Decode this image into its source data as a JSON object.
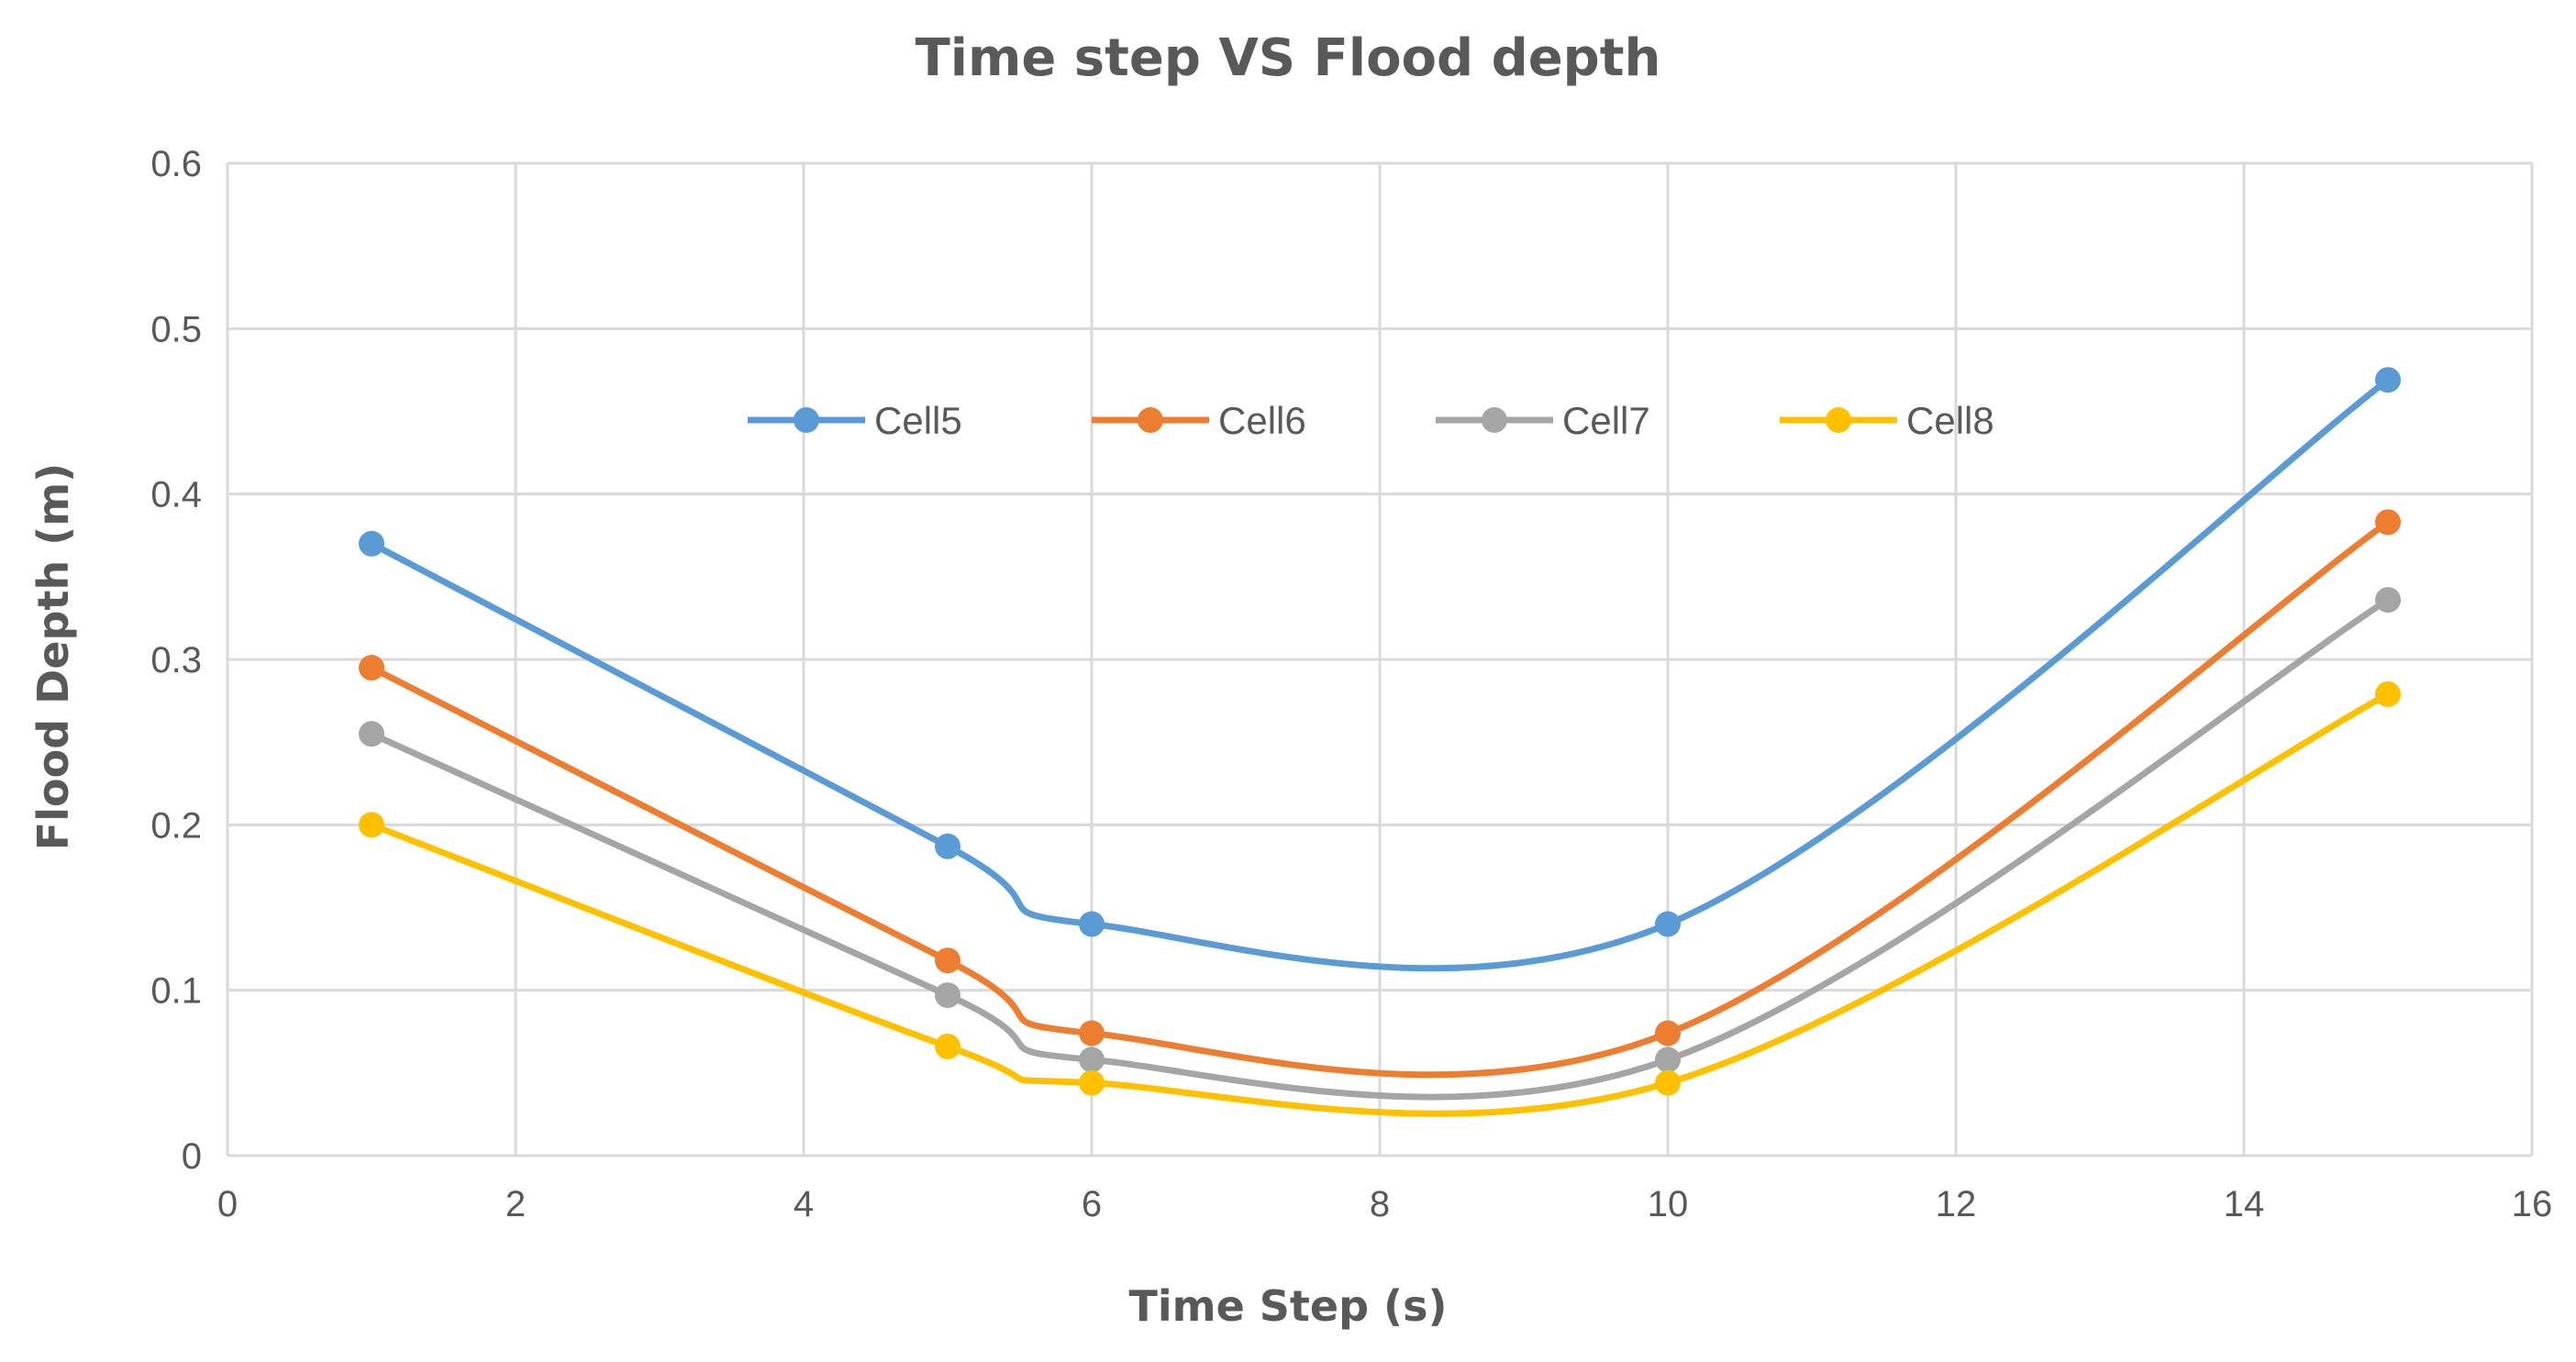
{
  "chart_data": {
    "type": "line",
    "title": "Time step  VS Flood depth",
    "xlabel": "Time Step (s)",
    "ylabel": "Flood Depth (m)",
    "xlim": [
      0,
      16
    ],
    "ylim": [
      0,
      0.6
    ],
    "x_ticks": [
      "0",
      "2",
      "4",
      "6",
      "8",
      "10",
      "12",
      "14",
      "16"
    ],
    "y_ticks": [
      "0",
      "0.1",
      "0.2",
      "0.3",
      "0.4",
      "0.5",
      "0.6"
    ],
    "grid": true,
    "smooth": true,
    "legend_position": "inside-top",
    "x": [
      1,
      5,
      6,
      10,
      15
    ],
    "series": [
      {
        "name": "Cell5",
        "color": "#5b9bd5",
        "values": [
          0.37,
          0.187,
          0.14,
          0.14,
          0.469
        ]
      },
      {
        "name": "Cell6",
        "color": "#ed7d31",
        "values": [
          0.295,
          0.118,
          0.074,
          0.074,
          0.383
        ]
      },
      {
        "name": "Cell7",
        "color": "#a5a5a5",
        "values": [
          0.255,
          0.097,
          0.058,
          0.058,
          0.336
        ]
      },
      {
        "name": "Cell8",
        "color": "#ffc000",
        "values": [
          0.2,
          0.066,
          0.044,
          0.044,
          0.279
        ]
      }
    ]
  }
}
